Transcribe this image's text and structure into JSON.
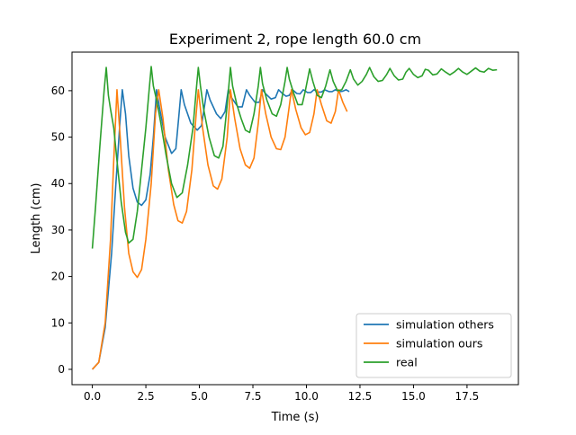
{
  "chart_data": {
    "type": "line",
    "title": "Experiment 2, rope length 60.0 cm",
    "xlabel": "Time (s)",
    "ylabel": "Length (cm)",
    "xlim": [
      -0.95,
      19.9
    ],
    "ylim": [
      -3.3,
      68.3
    ],
    "xticks": [
      0.0,
      2.5,
      5.0,
      7.5,
      10.0,
      12.5,
      15.0,
      17.5
    ],
    "xtick_labels": [
      "0.0",
      "2.5",
      "5.0",
      "7.5",
      "10.0",
      "12.5",
      "15.0",
      "17.5"
    ],
    "yticks": [
      0,
      10,
      20,
      30,
      40,
      50,
      60
    ],
    "ytick_labels": [
      "0",
      "10",
      "20",
      "30",
      "40",
      "50",
      "60"
    ],
    "grid": false,
    "legend_position": "bottom-right",
    "series": [
      {
        "name": "simulation others",
        "color": "#1f77b4",
        "points": [
          [
            0.0,
            0.0
          ],
          [
            0.3,
            1.5
          ],
          [
            0.6,
            9.0
          ],
          [
            0.9,
            25.0
          ],
          [
            1.1,
            40.0
          ],
          [
            1.3,
            54.0
          ],
          [
            1.4,
            60.2
          ],
          [
            1.55,
            55.0
          ],
          [
            1.7,
            46.0
          ],
          [
            1.9,
            39.0
          ],
          [
            2.1,
            36.0
          ],
          [
            2.3,
            35.3
          ],
          [
            2.5,
            36.5
          ],
          [
            2.7,
            42.0
          ],
          [
            2.85,
            50.0
          ],
          [
            3.0,
            60.2
          ],
          [
            3.15,
            56.0
          ],
          [
            3.4,
            50.0
          ],
          [
            3.7,
            46.5
          ],
          [
            3.9,
            47.5
          ],
          [
            4.05,
            55.0
          ],
          [
            4.15,
            60.2
          ],
          [
            4.3,
            57.0
          ],
          [
            4.6,
            53.0
          ],
          [
            4.9,
            51.5
          ],
          [
            5.1,
            52.5
          ],
          [
            5.25,
            57.0
          ],
          [
            5.35,
            60.2
          ],
          [
            5.5,
            58.0
          ],
          [
            5.8,
            55.0
          ],
          [
            6.0,
            54.0
          ],
          [
            6.2,
            55.5
          ],
          [
            6.35,
            60.2
          ],
          [
            6.5,
            58.5
          ],
          [
            6.8,
            56.5
          ],
          [
            7.0,
            56.5
          ],
          [
            7.2,
            60.2
          ],
          [
            7.35,
            59.0
          ],
          [
            7.6,
            57.5
          ],
          [
            7.8,
            57.5
          ],
          [
            7.95,
            60.2
          ],
          [
            8.1,
            59.3
          ],
          [
            8.35,
            58.2
          ],
          [
            8.55,
            58.5
          ],
          [
            8.7,
            60.2
          ],
          [
            8.85,
            59.5
          ],
          [
            9.05,
            58.8
          ],
          [
            9.2,
            59.0
          ],
          [
            9.35,
            60.2
          ],
          [
            9.55,
            59.4
          ],
          [
            9.7,
            59.3
          ],
          [
            9.85,
            60.2
          ],
          [
            10.05,
            59.6
          ],
          [
            10.2,
            59.6
          ],
          [
            10.35,
            60.2
          ],
          [
            10.55,
            59.7
          ],
          [
            10.7,
            59.7
          ],
          [
            10.85,
            60.2
          ],
          [
            11.05,
            59.8
          ],
          [
            11.2,
            59.8
          ],
          [
            11.35,
            60.2
          ],
          [
            11.55,
            59.8
          ],
          [
            11.7,
            59.9
          ],
          [
            11.85,
            60.2
          ],
          [
            12.0,
            59.8
          ]
        ]
      },
      {
        "name": "simulation ours",
        "color": "#ff7f0e",
        "points": [
          [
            0.0,
            0.0
          ],
          [
            0.3,
            1.5
          ],
          [
            0.6,
            10.0
          ],
          [
            0.85,
            28.0
          ],
          [
            1.0,
            45.0
          ],
          [
            1.15,
            60.2
          ],
          [
            1.3,
            50.0
          ],
          [
            1.5,
            35.0
          ],
          [
            1.7,
            25.0
          ],
          [
            1.9,
            21.0
          ],
          [
            2.1,
            19.8
          ],
          [
            2.3,
            21.5
          ],
          [
            2.5,
            28.0
          ],
          [
            2.75,
            40.0
          ],
          [
            2.95,
            55.0
          ],
          [
            3.1,
            60.2
          ],
          [
            3.3,
            54.0
          ],
          [
            3.55,
            43.0
          ],
          [
            3.8,
            35.5
          ],
          [
            4.0,
            32.0
          ],
          [
            4.2,
            31.5
          ],
          [
            4.4,
            34.0
          ],
          [
            4.65,
            43.0
          ],
          [
            4.85,
            55.0
          ],
          [
            4.95,
            60.2
          ],
          [
            5.15,
            52.0
          ],
          [
            5.4,
            44.0
          ],
          [
            5.65,
            39.5
          ],
          [
            5.85,
            38.8
          ],
          [
            6.05,
            41.0
          ],
          [
            6.3,
            50.0
          ],
          [
            6.45,
            60.2
          ],
          [
            6.65,
            54.0
          ],
          [
            6.9,
            47.5
          ],
          [
            7.15,
            44.0
          ],
          [
            7.35,
            43.3
          ],
          [
            7.55,
            45.5
          ],
          [
            7.75,
            53.0
          ],
          [
            7.9,
            60.2
          ],
          [
            8.1,
            55.0
          ],
          [
            8.35,
            50.0
          ],
          [
            8.6,
            47.5
          ],
          [
            8.8,
            47.3
          ],
          [
            9.0,
            50.0
          ],
          [
            9.15,
            55.0
          ],
          [
            9.3,
            60.2
          ],
          [
            9.5,
            56.0
          ],
          [
            9.75,
            52.0
          ],
          [
            9.95,
            50.5
          ],
          [
            10.15,
            51.0
          ],
          [
            10.35,
            55.0
          ],
          [
            10.5,
            60.2
          ],
          [
            10.7,
            57.0
          ],
          [
            10.95,
            53.5
          ],
          [
            11.15,
            53.0
          ],
          [
            11.35,
            55.5
          ],
          [
            11.5,
            60.2
          ],
          [
            11.7,
            57.5
          ],
          [
            11.9,
            55.5
          ]
        ]
      },
      {
        "name": "real",
        "color": "#2ca02c",
        "points": [
          [
            0.0,
            26.0
          ],
          [
            0.15,
            35.0
          ],
          [
            0.35,
            48.0
          ],
          [
            0.55,
            60.0
          ],
          [
            0.65,
            65.0
          ],
          [
            0.75,
            59.0
          ],
          [
            0.85,
            56.0
          ],
          [
            1.0,
            52.0
          ],
          [
            1.15,
            45.0
          ],
          [
            1.35,
            36.0
          ],
          [
            1.55,
            29.5
          ],
          [
            1.7,
            27.2
          ],
          [
            1.9,
            28.0
          ],
          [
            2.1,
            34.0
          ],
          [
            2.3,
            43.0
          ],
          [
            2.5,
            52.0
          ],
          [
            2.65,
            60.0
          ],
          [
            2.75,
            65.2
          ],
          [
            2.85,
            61.0
          ],
          [
            3.0,
            58.0
          ],
          [
            3.2,
            53.0
          ],
          [
            3.45,
            46.0
          ],
          [
            3.7,
            40.0
          ],
          [
            3.95,
            37.0
          ],
          [
            4.2,
            38.0
          ],
          [
            4.45,
            44.0
          ],
          [
            4.7,
            52.0
          ],
          [
            4.85,
            60.0
          ],
          [
            4.95,
            65.0
          ],
          [
            5.05,
            61.0
          ],
          [
            5.2,
            56.0
          ],
          [
            5.45,
            50.0
          ],
          [
            5.7,
            46.0
          ],
          [
            5.9,
            45.5
          ],
          [
            6.1,
            48.0
          ],
          [
            6.3,
            57.0
          ],
          [
            6.45,
            65.0
          ],
          [
            6.55,
            61.0
          ],
          [
            6.75,
            57.0
          ],
          [
            6.95,
            54.0
          ],
          [
            7.15,
            51.5
          ],
          [
            7.35,
            51.0
          ],
          [
            7.55,
            55.0
          ],
          [
            7.75,
            61.0
          ],
          [
            7.85,
            65.0
          ],
          [
            7.95,
            61.5
          ],
          [
            8.15,
            58.0
          ],
          [
            8.4,
            55.0
          ],
          [
            8.6,
            54.5
          ],
          [
            8.8,
            57.0
          ],
          [
            9.0,
            62.0
          ],
          [
            9.1,
            65.0
          ],
          [
            9.2,
            62.5
          ],
          [
            9.4,
            59.5
          ],
          [
            9.6,
            57.0
          ],
          [
            9.8,
            57.0
          ],
          [
            9.95,
            60.0
          ],
          [
            10.15,
            64.7
          ],
          [
            10.3,
            62.0
          ],
          [
            10.5,
            59.0
          ],
          [
            10.7,
            58.5
          ],
          [
            10.9,
            61.0
          ],
          [
            11.1,
            64.5
          ],
          [
            11.25,
            62.0
          ],
          [
            11.45,
            60.0
          ],
          [
            11.65,
            60.2
          ],
          [
            11.85,
            62.0
          ],
          [
            12.05,
            64.5
          ],
          [
            12.2,
            62.5
          ],
          [
            12.4,
            61.2
          ],
          [
            12.6,
            62.0
          ],
          [
            12.8,
            63.5
          ],
          [
            12.95,
            65.0
          ],
          [
            13.15,
            63.0
          ],
          [
            13.35,
            62.0
          ],
          [
            13.55,
            62.2
          ],
          [
            13.75,
            63.5
          ],
          [
            13.9,
            64.8
          ],
          [
            14.1,
            63.2
          ],
          [
            14.3,
            62.3
          ],
          [
            14.5,
            62.5
          ],
          [
            14.65,
            64.0
          ],
          [
            14.8,
            64.8
          ],
          [
            15.0,
            63.5
          ],
          [
            15.2,
            62.8
          ],
          [
            15.4,
            63.2
          ],
          [
            15.55,
            64.6
          ],
          [
            15.7,
            64.4
          ],
          [
            15.9,
            63.4
          ],
          [
            16.1,
            63.6
          ],
          [
            16.3,
            64.7
          ],
          [
            16.5,
            64.0
          ],
          [
            16.7,
            63.4
          ],
          [
            16.9,
            64.0
          ],
          [
            17.1,
            64.8
          ],
          [
            17.3,
            64.0
          ],
          [
            17.5,
            63.5
          ],
          [
            17.7,
            64.2
          ],
          [
            17.9,
            64.9
          ],
          [
            18.1,
            64.2
          ],
          [
            18.3,
            64.0
          ],
          [
            18.5,
            64.8
          ],
          [
            18.7,
            64.4
          ],
          [
            18.9,
            64.5
          ]
        ]
      }
    ]
  }
}
